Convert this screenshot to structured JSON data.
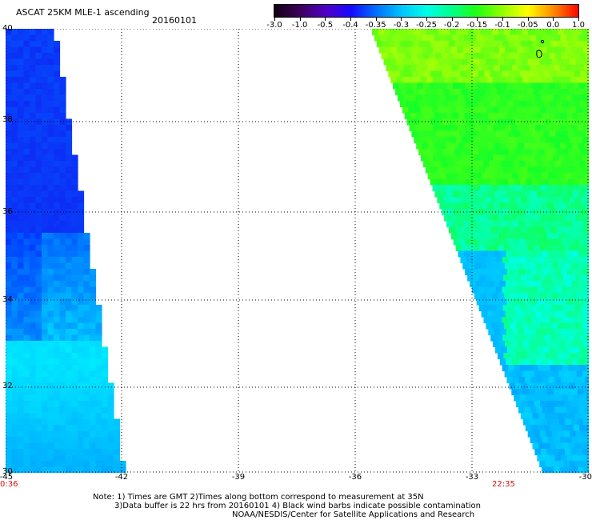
{
  "header": {
    "title": "ASCAT 25KM MLE-1 ascending",
    "date": "20160101"
  },
  "colorbar": {
    "ticks": [
      "-3.0",
      "-1.0",
      "-0.5",
      "-0.4",
      "-0.35",
      "-0.3",
      "-0.25",
      "-0.2",
      "-0.15",
      "-0.1",
      "-0.05",
      "0.0",
      "1.0"
    ],
    "colors": [
      "#1a0010",
      "#3a0060",
      "#5a00b0",
      "#1010ff",
      "#0080ff",
      "#00d0ff",
      "#00ffe0",
      "#00ff80",
      "#20ff00",
      "#a0ff00",
      "#ffff00",
      "#ff8000",
      "#ff0000"
    ]
  },
  "map": {
    "lat_labels": [
      "40",
      "38",
      "36",
      "34",
      "32",
      "30"
    ],
    "lon_labels": [
      "-45",
      "-42",
      "-39",
      "-36",
      "-33",
      "-30"
    ],
    "time_labels": [
      "0:36",
      "22:35"
    ],
    "swath_left": "blue low MLE values (about -0.4 to -0.3), greener/cyan toward south",
    "swath_right": "green values (-0.2 to -0.1) in north, cyan (-0.3) in south"
  },
  "notes": {
    "line1": "Note: 1) Times are GMT 2)Times along bottom correspond to measurement at 35N",
    "line2": "3)Data buffer is 22 hrs from 20160101 4) Black wind barbs indicate possible contamination",
    "line3": "NOAA/NESDIS/Center for Satellite Applications and Research"
  }
}
